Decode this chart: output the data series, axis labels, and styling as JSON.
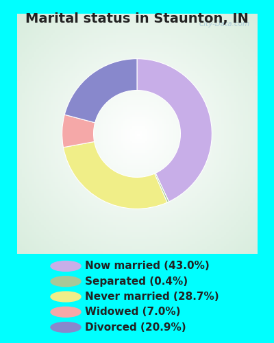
{
  "title": "Marital status in Staunton, IN",
  "categories": [
    "Now married (43.0%)",
    "Separated (0.4%)",
    "Never married (28.7%)",
    "Widowed (7.0%)",
    "Divorced (20.9%)"
  ],
  "values": [
    43.0,
    0.4,
    28.7,
    7.0,
    20.9
  ],
  "colors": [
    "#c8aee8",
    "#a8c898",
    "#f0ee88",
    "#f5a8a8",
    "#8888cc"
  ],
  "background_outer": "#00ffff",
  "background_inner_color": "#d0ead8",
  "title_fontsize": 14,
  "legend_fontsize": 11,
  "watermark": "City-Data.com",
  "donut_width": 0.42,
  "start_angle": 90
}
